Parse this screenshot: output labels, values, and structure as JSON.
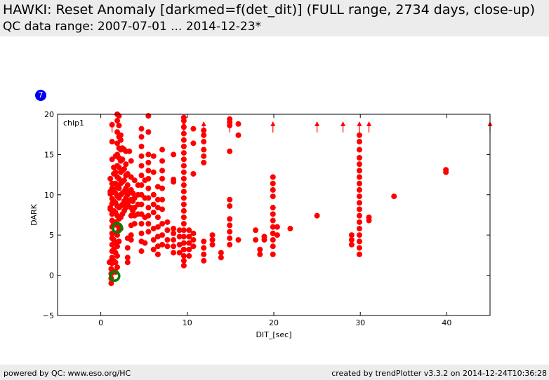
{
  "header": {
    "title": "HAWKI: Reset Anomaly [darkmed=f(det_dit)] (FULL range, 2734 days, close-up)",
    "subtitle": "QC data range: 2007-07-01 ... 2014-12-23*"
  },
  "badge": "7",
  "footer": {
    "left": "powered by QC: www.eso.org/HC",
    "right": "created by trendPlotter v3.3.2 on 2014-12-24T10:36:28"
  },
  "colors": {
    "points": "#ff0000",
    "highlight": "#008000",
    "badge": "#0000ee",
    "header_bg": "#ececec"
  },
  "chart_data": {
    "type": "scatter",
    "panel_label": "chip1",
    "xlabel": "DIT_[sec]",
    "ylabel": "DARK",
    "xlim": [
      -5,
      45
    ],
    "ylim": [
      -5,
      20
    ],
    "xticks": [
      0,
      10,
      20,
      30,
      40
    ],
    "yticks": [
      -5,
      0,
      5,
      10,
      15,
      20
    ],
    "grid": false,
    "points": [
      [
        1.0,
        1.6
      ],
      [
        1.1,
        1.7
      ],
      [
        1.1,
        8.2
      ],
      [
        1.1,
        8.4
      ],
      [
        1.1,
        10.1
      ],
      [
        1.1,
        10.4
      ],
      [
        1.1,
        12.0
      ],
      [
        1.2,
        -1.0
      ],
      [
        1.2,
        -0.4
      ],
      [
        1.2,
        0.2
      ],
      [
        1.2,
        0.8
      ],
      [
        1.3,
        1.5
      ],
      [
        1.3,
        2.2
      ],
      [
        1.3,
        3.0
      ],
      [
        1.3,
        3.8
      ],
      [
        1.3,
        4.6
      ],
      [
        1.3,
        5.2
      ],
      [
        1.3,
        6.0
      ],
      [
        1.3,
        6.8
      ],
      [
        1.3,
        7.6
      ],
      [
        1.3,
        8.9
      ],
      [
        1.3,
        9.5
      ],
      [
        1.3,
        10.8
      ],
      [
        1.3,
        11.4
      ],
      [
        1.3,
        14.4
      ],
      [
        1.3,
        16.6
      ],
      [
        1.3,
        18.7
      ],
      [
        1.5,
        0.5
      ],
      [
        1.5,
        1.8
      ],
      [
        1.5,
        3.2
      ],
      [
        1.5,
        4.4
      ],
      [
        1.5,
        6.4
      ],
      [
        1.5,
        8.0
      ],
      [
        1.5,
        9.2
      ],
      [
        1.5,
        10.6
      ],
      [
        1.5,
        12.6
      ],
      [
        1.5,
        13.4
      ],
      [
        1.7,
        0.4
      ],
      [
        1.7,
        1.6
      ],
      [
        1.7,
        2.8
      ],
      [
        1.7,
        4.0
      ],
      [
        1.7,
        5.2
      ],
      [
        1.7,
        6.6
      ],
      [
        1.7,
        7.8
      ],
      [
        1.7,
        9.0
      ],
      [
        1.7,
        10.2
      ],
      [
        1.7,
        11.4
      ],
      [
        1.7,
        12.8
      ],
      [
        1.7,
        14.8
      ],
      [
        1.9,
        1.0
      ],
      [
        1.9,
        2.4
      ],
      [
        1.9,
        3.6
      ],
      [
        1.9,
        5.0
      ],
      [
        1.9,
        6.2
      ],
      [
        1.9,
        7.4
      ],
      [
        1.9,
        8.6
      ],
      [
        1.9,
        9.8
      ],
      [
        1.9,
        11.0
      ],
      [
        1.9,
        12.2
      ],
      [
        1.9,
        13.6
      ],
      [
        1.9,
        15.0
      ],
      [
        1.9,
        16.4
      ],
      [
        1.9,
        17.8
      ],
      [
        1.9,
        19.2
      ],
      [
        1.9,
        20.0
      ],
      [
        2.1,
        4.2
      ],
      [
        2.1,
        5.6
      ],
      [
        2.1,
        7.0
      ],
      [
        2.1,
        8.4
      ],
      [
        2.1,
        9.6
      ],
      [
        2.1,
        10.8
      ],
      [
        2.1,
        12.0
      ],
      [
        2.1,
        13.4
      ],
      [
        2.1,
        14.6
      ],
      [
        2.1,
        15.8
      ],
      [
        2.1,
        17.2
      ],
      [
        2.1,
        18.6
      ],
      [
        2.1,
        19.8
      ],
      [
        2.3,
        5.8
      ],
      [
        2.3,
        7.2
      ],
      [
        2.3,
        8.6
      ],
      [
        2.3,
        10.0
      ],
      [
        2.3,
        11.4
      ],
      [
        2.3,
        12.8
      ],
      [
        2.3,
        14.2
      ],
      [
        2.3,
        15.6
      ],
      [
        2.3,
        16.8
      ],
      [
        2.3,
        17.4
      ],
      [
        2.5,
        7.6
      ],
      [
        2.5,
        8.8
      ],
      [
        2.5,
        10.2
      ],
      [
        2.5,
        11.6
      ],
      [
        2.5,
        13.0
      ],
      [
        2.5,
        14.4
      ],
      [
        2.5,
        15.8
      ],
      [
        2.7,
        8.0
      ],
      [
        2.7,
        9.2
      ],
      [
        2.7,
        10.4
      ],
      [
        2.7,
        11.8
      ],
      [
        2.7,
        13.2
      ],
      [
        2.7,
        15.6
      ],
      [
        2.9,
        8.4
      ],
      [
        2.9,
        9.6
      ],
      [
        2.9,
        10.8
      ],
      [
        2.9,
        12.4
      ],
      [
        2.9,
        13.8
      ],
      [
        2.9,
        15.4
      ],
      [
        3.1,
        1.6
      ],
      [
        3.1,
        2.2
      ],
      [
        3.1,
        3.4
      ],
      [
        3.1,
        4.6
      ],
      [
        3.1,
        8.8
      ],
      [
        3.1,
        10.0
      ],
      [
        3.1,
        11.2
      ],
      [
        3.1,
        12.6
      ],
      [
        3.3,
        9.2
      ],
      [
        3.3,
        10.4
      ],
      [
        3.3,
        15.4
      ],
      [
        3.5,
        4.4
      ],
      [
        3.5,
        5.0
      ],
      [
        3.5,
        6.2
      ],
      [
        3.5,
        7.4
      ],
      [
        3.5,
        8.4
      ],
      [
        3.5,
        9.4
      ],
      [
        3.5,
        10.6
      ],
      [
        3.5,
        12.2
      ],
      [
        3.5,
        14.2
      ],
      [
        3.7,
        8.0
      ],
      [
        3.7,
        9.2
      ],
      [
        3.7,
        10.2
      ],
      [
        3.9,
        6.4
      ],
      [
        3.9,
        7.4
      ],
      [
        3.9,
        8.4
      ],
      [
        3.9,
        9.6
      ],
      [
        3.9,
        11.8
      ],
      [
        4.3,
        7.6
      ],
      [
        4.3,
        8.8
      ],
      [
        4.3,
        10.0
      ],
      [
        4.3,
        11.2
      ],
      [
        4.7,
        3.0
      ],
      [
        4.7,
        4.2
      ],
      [
        4.7,
        5.2
      ],
      [
        4.7,
        6.4
      ],
      [
        4.7,
        7.6
      ],
      [
        4.7,
        8.8
      ],
      [
        4.7,
        10.0
      ],
      [
        4.7,
        11.2
      ],
      [
        4.7,
        12.4
      ],
      [
        4.7,
        13.6
      ],
      [
        4.7,
        14.8
      ],
      [
        4.7,
        16.0
      ],
      [
        4.7,
        17.2
      ],
      [
        4.7,
        18.2
      ],
      [
        5.1,
        4.0
      ],
      [
        5.1,
        7.2
      ],
      [
        5.1,
        9.6
      ],
      [
        5.1,
        11.8
      ],
      [
        5.5,
        5.4
      ],
      [
        5.5,
        6.4
      ],
      [
        5.5,
        7.4
      ],
      [
        5.5,
        8.4
      ],
      [
        5.5,
        9.6
      ],
      [
        5.5,
        10.8
      ],
      [
        5.5,
        12.0
      ],
      [
        5.5,
        13.0
      ],
      [
        5.5,
        14.0
      ],
      [
        5.5,
        15.0
      ],
      [
        5.5,
        17.8
      ],
      [
        5.5,
        19.8
      ],
      [
        6.1,
        3.2
      ],
      [
        6.1,
        4.4
      ],
      [
        6.1,
        5.8
      ],
      [
        6.1,
        7.8
      ],
      [
        6.1,
        8.8
      ],
      [
        6.1,
        10.0
      ],
      [
        6.1,
        12.8
      ],
      [
        6.1,
        14.8
      ],
      [
        6.6,
        2.6
      ],
      [
        6.6,
        3.6
      ],
      [
        6.6,
        4.8
      ],
      [
        6.6,
        6.0
      ],
      [
        6.6,
        7.2
      ],
      [
        6.6,
        8.4
      ],
      [
        6.6,
        9.4
      ],
      [
        6.6,
        11.0
      ],
      [
        7.1,
        3.8
      ],
      [
        7.1,
        5.0
      ],
      [
        7.1,
        6.4
      ],
      [
        7.1,
        8.2
      ],
      [
        7.1,
        9.4
      ],
      [
        7.1,
        10.8
      ],
      [
        7.1,
        12.0
      ],
      [
        7.1,
        13.0
      ],
      [
        7.1,
        14.2
      ],
      [
        7.1,
        15.6
      ],
      [
        7.7,
        3.6
      ],
      [
        7.7,
        4.4
      ],
      [
        7.7,
        5.6
      ],
      [
        7.7,
        6.6
      ],
      [
        8.4,
        2.8
      ],
      [
        8.4,
        3.6
      ],
      [
        8.4,
        4.4
      ],
      [
        8.4,
        5.2
      ],
      [
        8.4,
        5.8
      ],
      [
        8.4,
        11.6
      ],
      [
        8.4,
        11.9
      ],
      [
        8.4,
        15.0
      ],
      [
        9.1,
        2.8
      ],
      [
        9.1,
        3.8
      ],
      [
        9.1,
        4.8
      ],
      [
        9.1,
        5.6
      ],
      [
        9.6,
        1.2
      ],
      [
        9.6,
        1.8
      ],
      [
        9.6,
        2.4
      ],
      [
        9.6,
        3.2
      ],
      [
        9.6,
        4.0
      ],
      [
        9.6,
        4.8
      ],
      [
        9.6,
        5.6
      ],
      [
        9.6,
        6.4
      ],
      [
        9.6,
        7.2
      ],
      [
        9.6,
        8.0
      ],
      [
        9.6,
        8.8
      ],
      [
        9.6,
        9.6
      ],
      [
        9.6,
        10.4
      ],
      [
        9.6,
        11.2
      ],
      [
        9.6,
        12.0
      ],
      [
        9.6,
        12.8
      ],
      [
        9.6,
        13.6
      ],
      [
        9.6,
        14.4
      ],
      [
        9.6,
        15.2
      ],
      [
        9.6,
        16.0
      ],
      [
        9.6,
        16.8
      ],
      [
        9.6,
        17.6
      ],
      [
        9.6,
        18.4
      ],
      [
        9.6,
        19.2
      ],
      [
        9.6,
        19.6
      ],
      [
        10.2,
        2.4
      ],
      [
        10.2,
        3.2
      ],
      [
        10.2,
        4.0
      ],
      [
        10.2,
        4.8
      ],
      [
        10.2,
        5.6
      ],
      [
        10.7,
        3.6
      ],
      [
        10.7,
        4.4
      ],
      [
        10.7,
        5.2
      ],
      [
        10.7,
        12.6
      ],
      [
        10.7,
        16.4
      ],
      [
        10.7,
        18.2
      ],
      [
        11.9,
        1.8
      ],
      [
        11.9,
        2.6
      ],
      [
        11.9,
        3.4
      ],
      [
        11.9,
        4.2
      ],
      [
        11.9,
        14.0
      ],
      [
        11.9,
        14.8
      ],
      [
        11.9,
        15.6
      ],
      [
        11.9,
        16.6
      ],
      [
        11.9,
        17.4
      ],
      [
        11.9,
        18.0
      ],
      [
        12.9,
        3.8
      ],
      [
        12.9,
        4.4
      ],
      [
        12.9,
        5.0
      ],
      [
        13.9,
        2.2
      ],
      [
        13.9,
        2.8
      ],
      [
        14.9,
        3.8
      ],
      [
        14.9,
        4.6
      ],
      [
        14.9,
        5.4
      ],
      [
        14.9,
        6.2
      ],
      [
        14.9,
        7.0
      ],
      [
        14.9,
        8.6
      ],
      [
        14.9,
        9.4
      ],
      [
        14.9,
        15.4
      ],
      [
        14.9,
        18.6
      ],
      [
        14.9,
        19.0
      ],
      [
        14.9,
        19.4
      ],
      [
        15.9,
        4.4
      ],
      [
        15.9,
        17.4
      ],
      [
        15.9,
        18.8
      ],
      [
        17.9,
        4.4
      ],
      [
        17.9,
        5.6
      ],
      [
        18.4,
        2.6
      ],
      [
        18.4,
        3.2
      ],
      [
        18.9,
        4.4
      ],
      [
        18.9,
        4.8
      ],
      [
        19.9,
        2.6
      ],
      [
        19.9,
        3.6
      ],
      [
        19.9,
        4.4
      ],
      [
        19.9,
        5.2
      ],
      [
        19.9,
        6.0
      ],
      [
        19.9,
        6.8
      ],
      [
        19.9,
        7.6
      ],
      [
        19.9,
        8.4
      ],
      [
        19.9,
        9.8
      ],
      [
        19.9,
        10.6
      ],
      [
        19.9,
        11.4
      ],
      [
        19.9,
        12.2
      ],
      [
        20.4,
        5.0
      ],
      [
        20.4,
        6.0
      ],
      [
        21.9,
        5.8
      ],
      [
        25.0,
        7.4
      ],
      [
        29.0,
        3.8
      ],
      [
        29.0,
        4.4
      ],
      [
        29.0,
        5.0
      ],
      [
        29.9,
        2.6
      ],
      [
        29.9,
        3.4
      ],
      [
        29.9,
        4.2
      ],
      [
        29.9,
        5.0
      ],
      [
        29.9,
        5.8
      ],
      [
        29.9,
        6.6
      ],
      [
        29.9,
        7.4
      ],
      [
        29.9,
        8.2
      ],
      [
        29.9,
        9.0
      ],
      [
        29.9,
        9.8
      ],
      [
        29.9,
        10.6
      ],
      [
        29.9,
        11.4
      ],
      [
        29.9,
        12.2
      ],
      [
        29.9,
        13.0
      ],
      [
        29.9,
        13.8
      ],
      [
        29.9,
        14.6
      ],
      [
        29.9,
        15.6
      ],
      [
        29.9,
        16.6
      ],
      [
        29.9,
        17.4
      ],
      [
        31.0,
        6.8
      ],
      [
        31.0,
        7.2
      ],
      [
        33.9,
        9.8
      ],
      [
        39.9,
        12.8
      ],
      [
        39.9,
        13.1
      ]
    ],
    "highlighted_points": [
      [
        1.6,
        -0.1
      ],
      [
        1.9,
        5.9
      ]
    ],
    "offscale_markers_x": [
      1.3,
      9.6,
      11.9,
      14.9,
      19.9,
      25.0,
      28.0,
      29.9,
      31.0,
      45.0
    ]
  }
}
